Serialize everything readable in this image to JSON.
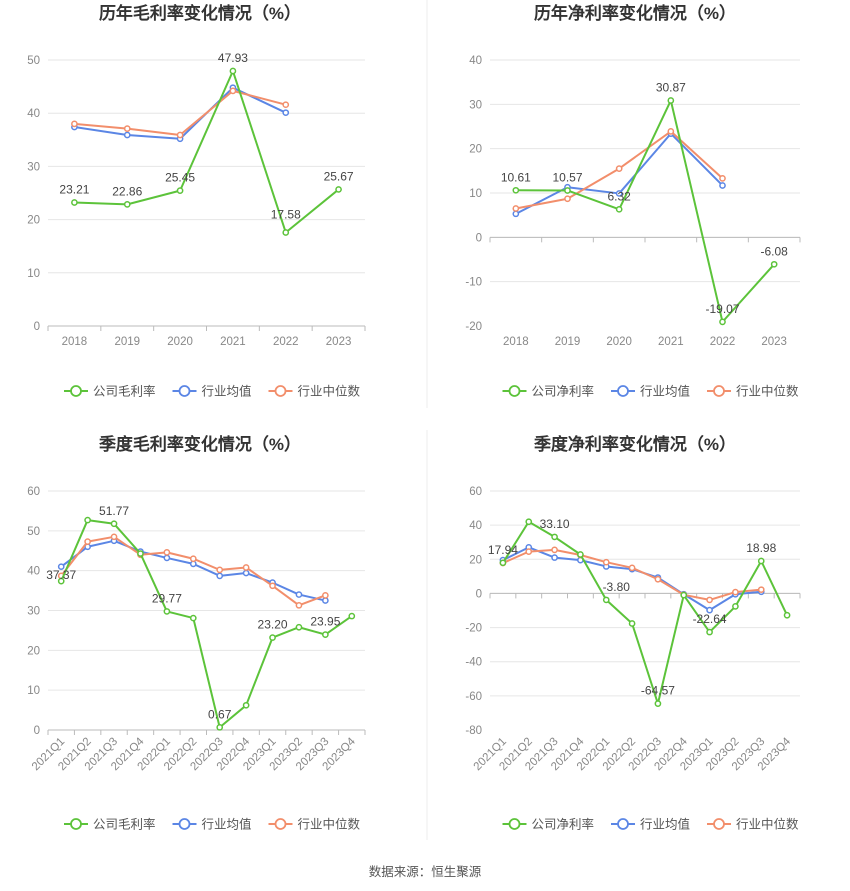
{
  "colors": {
    "company": "#5cc33a",
    "avg": "#5b86e5",
    "median": "#f28e6b",
    "grid": "#e6e6e6",
    "axis": "#bbbbbb"
  },
  "source_text": "数据来源：恒生聚源",
  "chart_data": [
    {
      "type": "line",
      "title": "历年毛利率变化情况（%）",
      "categories": [
        "2018",
        "2019",
        "2020",
        "2021",
        "2022",
        "2023"
      ],
      "ylim": [
        0,
        50
      ],
      "yticks": [
        0,
        10,
        20,
        30,
        40,
        50
      ],
      "legend": [
        "公司毛利率",
        "行业均值",
        "行业中位数"
      ],
      "series": [
        {
          "name": "公司毛利率",
          "values": [
            23.21,
            22.86,
            25.45,
            47.93,
            17.58,
            25.67
          ],
          "labels": [
            "23.21",
            "22.86",
            "25.45",
            "47.93",
            "17.58",
            "25.67"
          ]
        },
        {
          "name": "行业均值",
          "values": [
            37.4,
            35.9,
            35.2,
            44.8,
            40.1,
            null
          ]
        },
        {
          "name": "行业中位数",
          "values": [
            38.0,
            37.1,
            35.9,
            44.2,
            41.6,
            null
          ]
        }
      ]
    },
    {
      "type": "line",
      "title": "历年净利率变化情况（%）",
      "categories": [
        "2018",
        "2019",
        "2020",
        "2021",
        "2022",
        "2023"
      ],
      "ylim": [
        -20,
        40
      ],
      "yticks": [
        -20,
        -10,
        0,
        10,
        20,
        30,
        40
      ],
      "legend": [
        "公司净利率",
        "行业均值",
        "行业中位数"
      ],
      "series": [
        {
          "name": "公司净利率",
          "values": [
            10.61,
            10.57,
            6.32,
            30.87,
            -19.07,
            -6.08
          ],
          "labels": [
            "10.61",
            "10.57",
            "6.32",
            "30.87",
            "-19.07",
            "-6.08"
          ]
        },
        {
          "name": "行业均值",
          "values": [
            5.3,
            11.3,
            9.9,
            23.4,
            11.7,
            null
          ]
        },
        {
          "name": "行业中位数",
          "values": [
            6.5,
            8.7,
            15.5,
            23.9,
            13.3,
            null
          ]
        }
      ]
    },
    {
      "type": "line",
      "title": "季度毛利率变化情况（%）",
      "categories": [
        "2021Q1",
        "2021Q2",
        "2021Q3",
        "2021Q4",
        "2022Q1",
        "2022Q2",
        "2022Q3",
        "2022Q4",
        "2023Q1",
        "2023Q2",
        "2023Q3",
        "2023Q4"
      ],
      "ylim": [
        0,
        60
      ],
      "yticks": [
        0,
        10,
        20,
        30,
        40,
        50,
        60
      ],
      "legend": [
        "公司毛利率",
        "行业均值",
        "行业中位数"
      ],
      "series": [
        {
          "name": "公司毛利率",
          "values": [
            37.37,
            52.7,
            51.77,
            44.3,
            29.77,
            28.1,
            0.67,
            6.2,
            23.2,
            25.8,
            23.95,
            28.6
          ],
          "labels": [
            "37.37",
            null,
            "51.77",
            null,
            "29.77",
            null,
            "0.67",
            null,
            "23.20",
            null,
            "23.95",
            null
          ]
        },
        {
          "name": "行业均值",
          "values": [
            41.0,
            46.0,
            47.5,
            44.8,
            43.2,
            41.7,
            38.7,
            39.4,
            37.0,
            34.0,
            32.5,
            null
          ]
        },
        {
          "name": "行业中位数",
          "values": [
            38.7,
            47.3,
            48.5,
            44.0,
            44.6,
            43.0,
            40.2,
            40.8,
            36.2,
            31.3,
            33.8,
            null
          ]
        }
      ]
    },
    {
      "type": "line",
      "title": "季度净利率变化情况（%）",
      "categories": [
        "2021Q1",
        "2021Q2",
        "2021Q3",
        "2021Q4",
        "2022Q1",
        "2022Q2",
        "2022Q3",
        "2022Q4",
        "2023Q1",
        "2023Q2",
        "2023Q3",
        "2023Q4"
      ],
      "ylim": [
        -80,
        60
      ],
      "yticks": [
        -80,
        -60,
        -40,
        -20,
        0,
        20,
        40,
        60
      ],
      "legend": [
        "公司净利率",
        "行业均值",
        "行业中位数"
      ],
      "series": [
        {
          "name": "公司净利率",
          "values": [
            17.94,
            42.0,
            33.1,
            22.8,
            -3.8,
            -17.6,
            -64.57,
            -1.0,
            -22.64,
            -7.6,
            18.98,
            -12.8
          ],
          "labels": [
            "17.94",
            null,
            "33.10",
            null,
            "-3.80",
            null,
            "-64.57",
            null,
            "-22.64",
            null,
            "18.98",
            null
          ]
        },
        {
          "name": "行业均值",
          "values": [
            19.5,
            27.0,
            21.0,
            19.5,
            15.8,
            14.2,
            9.3,
            -0.5,
            -9.8,
            -0.5,
            1.0,
            null
          ]
        },
        {
          "name": "行业中位数",
          "values": [
            17.8,
            24.5,
            25.5,
            22.5,
            18.3,
            15.0,
            8.3,
            -0.8,
            -3.8,
            0.8,
            2.2,
            null
          ]
        }
      ]
    }
  ]
}
